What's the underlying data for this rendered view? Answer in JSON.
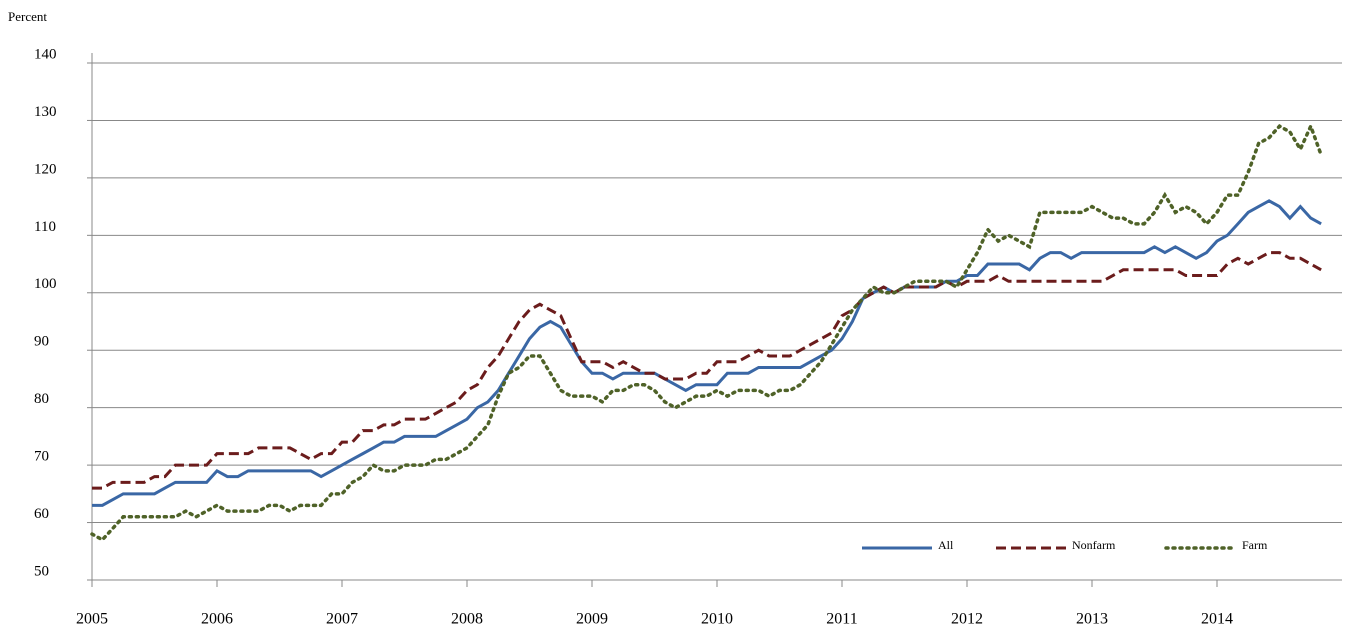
{
  "chart_data": {
    "type": "line",
    "y_label": "Percent",
    "x": [
      2005,
      2005.083,
      2005.167,
      2005.25,
      2005.333,
      2005.417,
      2005.5,
      2005.583,
      2005.667,
      2005.75,
      2005.833,
      2005.917,
      2006,
      2006.083,
      2006.167,
      2006.25,
      2006.333,
      2006.417,
      2006.5,
      2006.583,
      2006.667,
      2006.75,
      2006.833,
      2006.917,
      2007,
      2007.083,
      2007.167,
      2007.25,
      2007.333,
      2007.417,
      2007.5,
      2007.583,
      2007.667,
      2007.75,
      2007.833,
      2007.917,
      2008,
      2008.083,
      2008.167,
      2008.25,
      2008.333,
      2008.417,
      2008.5,
      2008.583,
      2008.667,
      2008.75,
      2008.833,
      2008.917,
      2009,
      2009.083,
      2009.167,
      2009.25,
      2009.333,
      2009.417,
      2009.5,
      2009.583,
      2009.667,
      2009.75,
      2009.833,
      2009.917,
      2010,
      2010.083,
      2010.167,
      2010.25,
      2010.333,
      2010.417,
      2010.5,
      2010.583,
      2010.667,
      2010.75,
      2010.833,
      2010.917,
      2011,
      2011.083,
      2011.167,
      2011.25,
      2011.333,
      2011.417,
      2011.5,
      2011.583,
      2011.667,
      2011.75,
      2011.833,
      2011.917,
      2012,
      2012.083,
      2012.167,
      2012.25,
      2012.333,
      2012.417,
      2012.5,
      2012.583,
      2012.667,
      2012.75,
      2012.833,
      2012.917,
      2013,
      2013.083,
      2013.167,
      2013.25,
      2013.333,
      2013.417,
      2013.5,
      2013.583,
      2013.667,
      2013.75,
      2013.833,
      2013.917,
      2014,
      2014.083,
      2014.167,
      2014.25,
      2014.333,
      2014.417,
      2014.5,
      2014.583,
      2014.667,
      2014.75,
      2014.833
    ],
    "series": [
      {
        "name": "All",
        "color": "#3a67a5",
        "dash": "solid",
        "values": [
          63,
          63,
          64,
          65,
          65,
          65,
          65,
          66,
          67,
          67,
          67,
          67,
          69,
          68,
          68,
          69,
          69,
          69,
          69,
          69,
          69,
          69,
          68,
          69,
          70,
          71,
          72,
          73,
          74,
          74,
          75,
          75,
          75,
          75,
          76,
          77,
          78,
          80,
          81,
          83,
          86,
          89,
          92,
          94,
          95,
          94,
          91,
          88,
          86,
          86,
          85,
          86,
          86,
          86,
          86,
          85,
          84,
          83,
          84,
          84,
          84,
          86,
          86,
          86,
          87,
          87,
          87,
          87,
          87,
          88,
          89,
          90,
          92,
          95,
          99,
          100,
          101,
          100,
          101,
          101,
          101,
          101,
          102,
          102,
          103,
          103,
          105,
          105,
          105,
          105,
          104,
          106,
          107,
          107,
          106,
          107,
          107,
          107,
          107,
          107,
          107,
          107,
          108,
          107,
          108,
          107,
          106,
          107,
          109,
          110,
          112,
          114,
          115,
          116,
          115,
          113,
          115,
          113,
          112
        ]
      },
      {
        "name": "Nonfarm",
        "color": "#6b1c1c",
        "dash": "dashed",
        "values": [
          66,
          66,
          67,
          67,
          67,
          67,
          68,
          68,
          70,
          70,
          70,
          70,
          72,
          72,
          72,
          72,
          73,
          73,
          73,
          73,
          72,
          71,
          72,
          72,
          74,
          74,
          76,
          76,
          77,
          77,
          78,
          78,
          78,
          79,
          80,
          81,
          83,
          84,
          87,
          89,
          92,
          95,
          97,
          98,
          97,
          96,
          92,
          88,
          88,
          88,
          87,
          88,
          87,
          86,
          86,
          85,
          85,
          85,
          86,
          86,
          88,
          88,
          88,
          89,
          90,
          89,
          89,
          89,
          90,
          91,
          92,
          93,
          96,
          97,
          99,
          100,
          101,
          100,
          101,
          101,
          101,
          101,
          102,
          101,
          102,
          102,
          102,
          103,
          102,
          102,
          102,
          102,
          102,
          102,
          102,
          102,
          102,
          102,
          103,
          104,
          104,
          104,
          104,
          104,
          104,
          103,
          103,
          103,
          103,
          105,
          106,
          105,
          106,
          107,
          107,
          106,
          106,
          105,
          104
        ]
      },
      {
        "name": "Farm",
        "color": "#4f6228",
        "dash": "dotted",
        "values": [
          58,
          57,
          59,
          61,
          61,
          61,
          61,
          61,
          61,
          62,
          61,
          62,
          63,
          62,
          62,
          62,
          62,
          63,
          63,
          62,
          63,
          63,
          63,
          65,
          65,
          67,
          68,
          70,
          69,
          69,
          70,
          70,
          70,
          71,
          71,
          72,
          73,
          75,
          77,
          82,
          86,
          87,
          89,
          89,
          86,
          83,
          82,
          82,
          82,
          81,
          83,
          83,
          84,
          84,
          83,
          81,
          80,
          81,
          82,
          82,
          83,
          82,
          83,
          83,
          83,
          82,
          83,
          83,
          84,
          86,
          88,
          91,
          94,
          97,
          99,
          101,
          100,
          100,
          101,
          102,
          102,
          102,
          102,
          101,
          104,
          107,
          111,
          109,
          110,
          109,
          108,
          114,
          114,
          114,
          114,
          114,
          115,
          114,
          113,
          113,
          112,
          112,
          114,
          117,
          114,
          115,
          114,
          112,
          114,
          117,
          117,
          121,
          126,
          127,
          129,
          128,
          125,
          129,
          124
        ]
      }
    ],
    "xlim": [
      2005,
      2015
    ],
    "xticks": [
      2005,
      2006,
      2007,
      2008,
      2009,
      2010,
      2011,
      2012,
      2013,
      2014
    ],
    "ylim": [
      50,
      140
    ],
    "yticks": [
      50,
      60,
      70,
      80,
      90,
      100,
      110,
      120,
      130,
      140
    ],
    "grid": true
  }
}
